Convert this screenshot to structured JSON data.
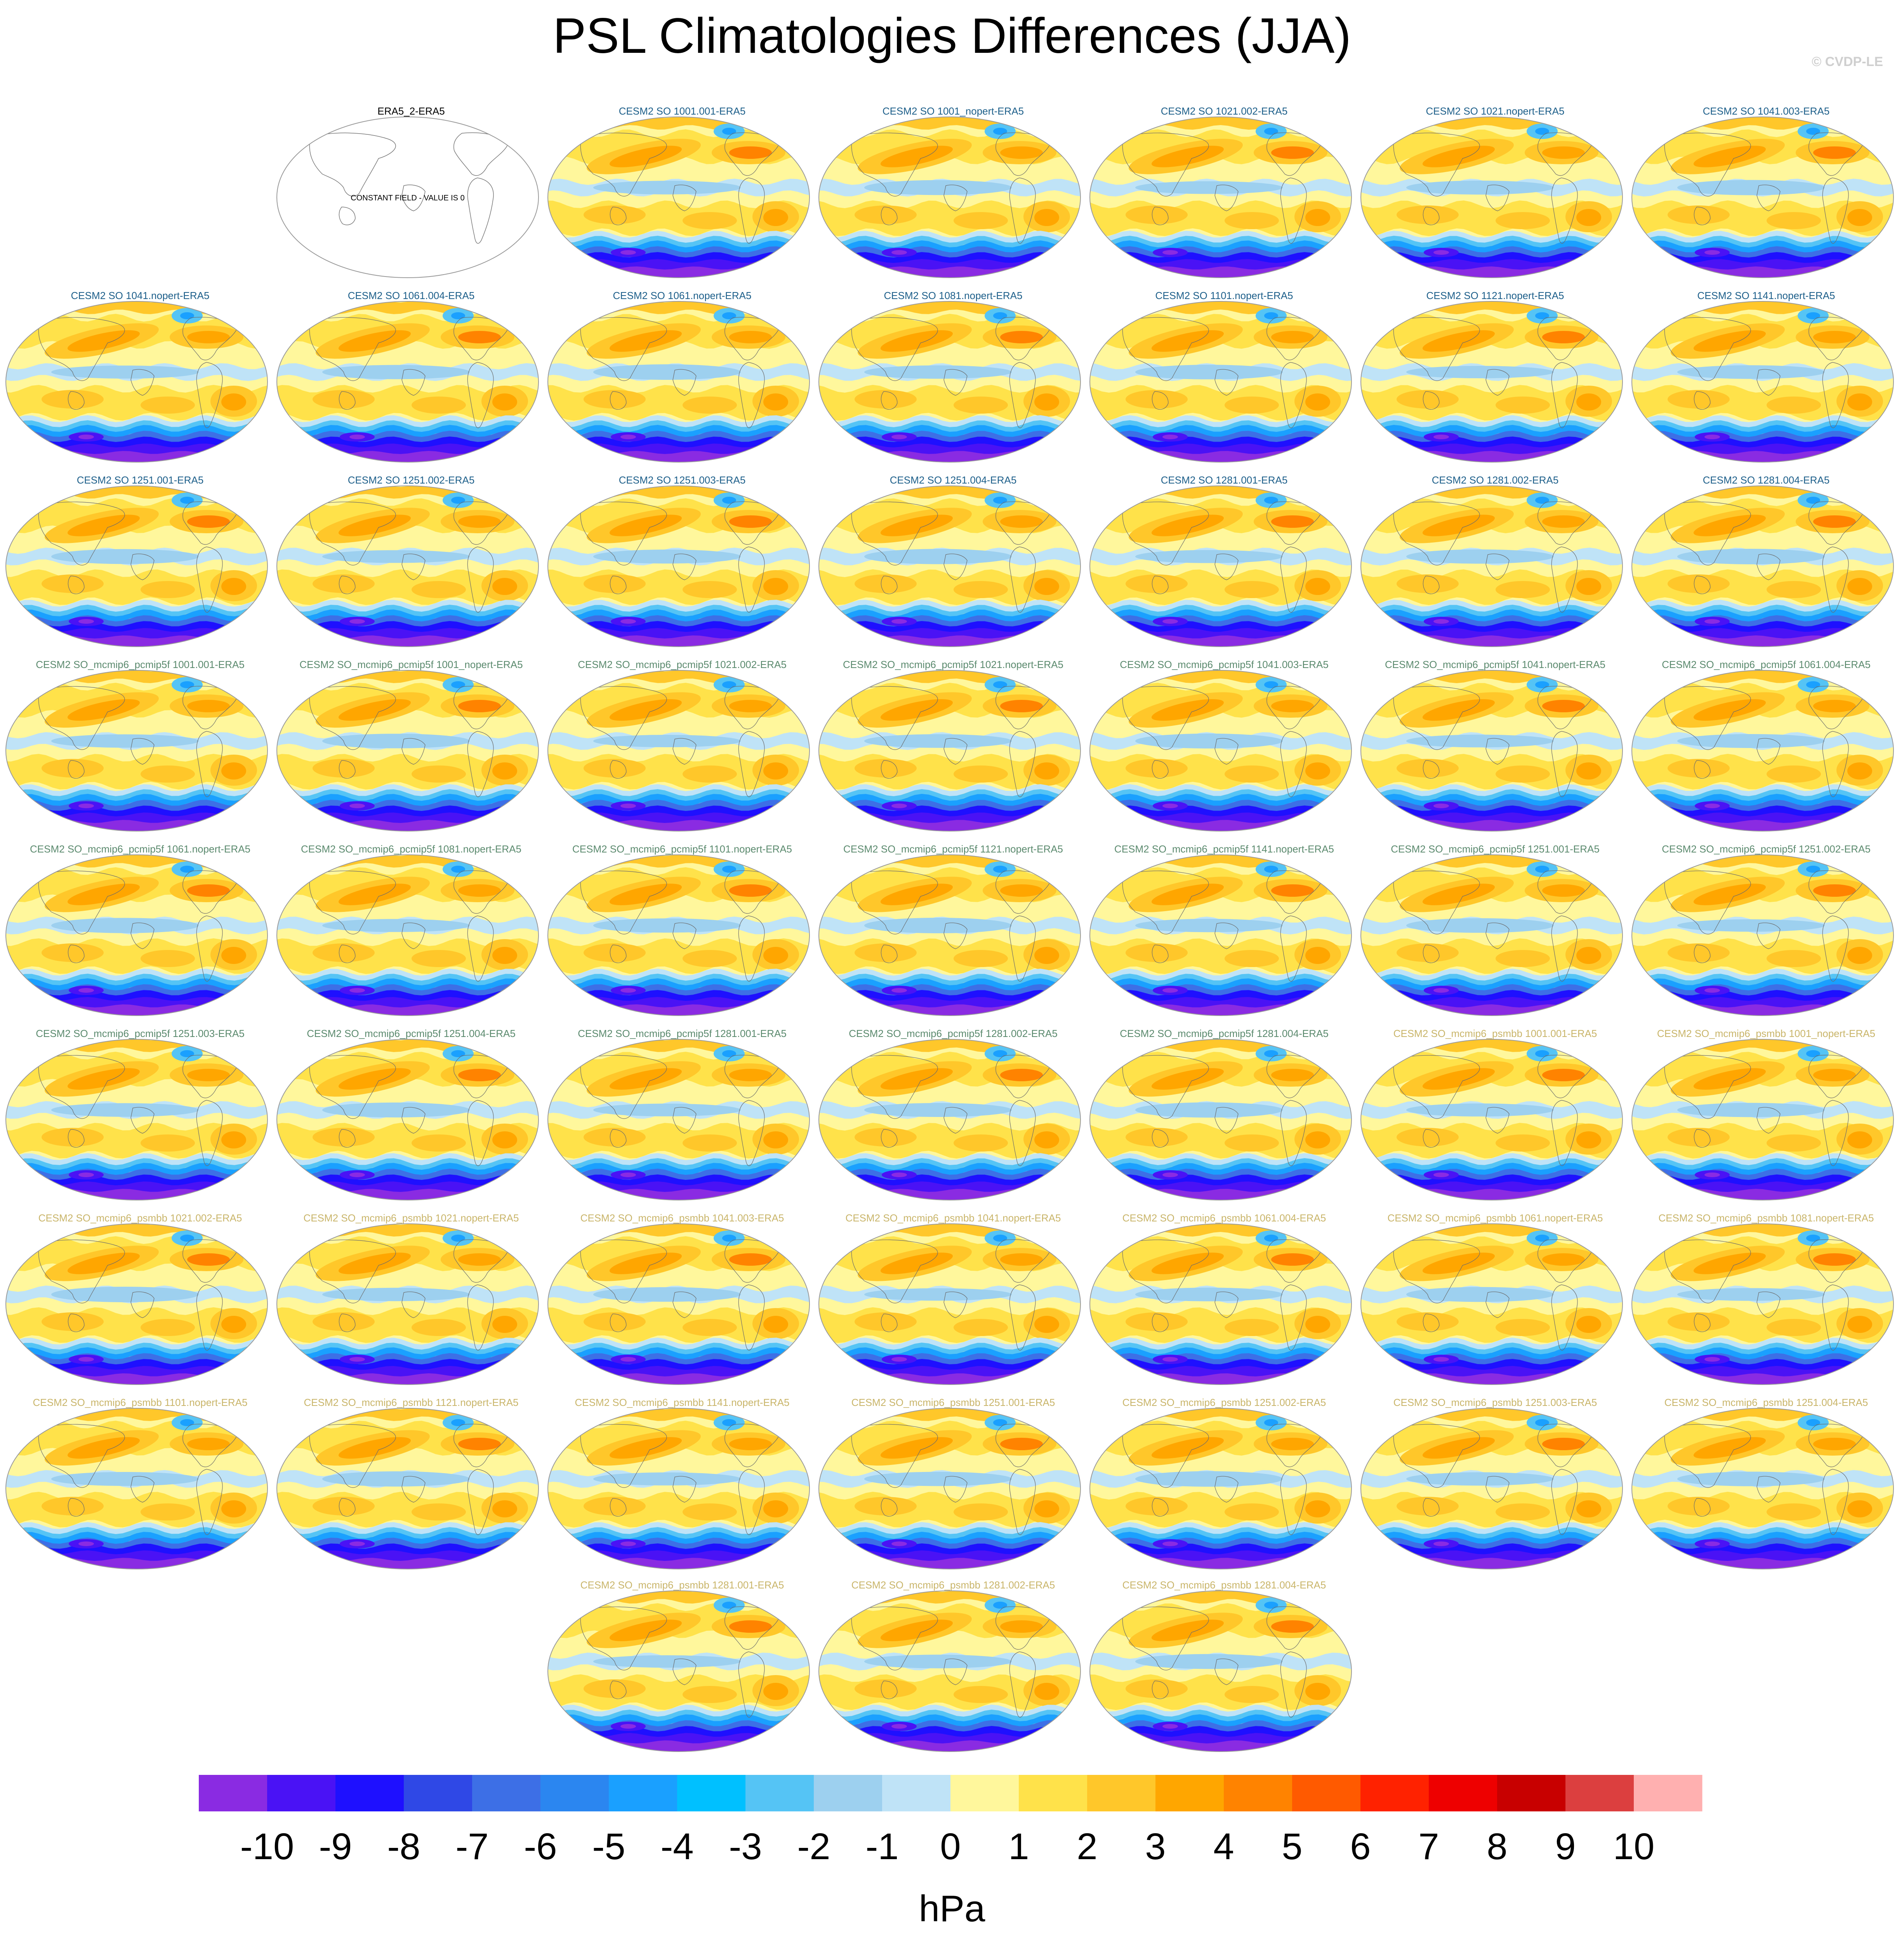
{
  "title": "PSL Climatologies Differences (JJA)",
  "watermark": "© CVDP-LE",
  "chart_data": {
    "type": "heatmap",
    "title": "PSL Climatologies Differences (JJA)",
    "units": "hPa",
    "projection": "Robinson (Pacific-centered global map)",
    "colorbar": {
      "orientation": "horizontal",
      "tick_labels": [
        "-10",
        "-9",
        "-8",
        "-7",
        "-6",
        "-5",
        "-4",
        "-3",
        "-2",
        "-1",
        "0",
        "1",
        "2",
        "3",
        "4",
        "5",
        "6",
        "7",
        "8",
        "9",
        "10"
      ],
      "colors": [
        "#8a2be2",
        "#4a12f5",
        "#1e10ff",
        "#2f48e6",
        "#3d6fe6",
        "#2b86f0",
        "#1aa0ff",
        "#00c0ff",
        "#55c4f5",
        "#9dd0ef",
        "#bfe3f7",
        "#fff79c",
        "#ffe24a",
        "#ffc72a",
        "#ffa600",
        "#ff8300",
        "#ff5a00",
        "#ff2200",
        "#ee0000",
        "#c80000",
        "#dc3f3f",
        "#ffb0b0"
      ]
    },
    "panels": [
      {
        "label": "ERA5_2-ERA5",
        "group": "reference",
        "note": "CONSTANT FIELD - VALUE IS 0"
      },
      {
        "label": "CESM2 SO 1001.001-ERA5",
        "group": "so"
      },
      {
        "label": "CESM2 SO 1001_nopert-ERA5",
        "group": "so"
      },
      {
        "label": "CESM2 SO 1021.002-ERA5",
        "group": "so"
      },
      {
        "label": "CESM2 SO 1021.nopert-ERA5",
        "group": "so"
      },
      {
        "label": "CESM2 SO 1041.003-ERA5",
        "group": "so"
      },
      {
        "label": "CESM2 SO 1041.nopert-ERA5",
        "group": "so"
      },
      {
        "label": "CESM2 SO 1061.004-ERA5",
        "group": "so"
      },
      {
        "label": "CESM2 SO 1061.nopert-ERA5",
        "group": "so"
      },
      {
        "label": "CESM2 SO 1081.nopert-ERA5",
        "group": "so"
      },
      {
        "label": "CESM2 SO 1101.nopert-ERA5",
        "group": "so"
      },
      {
        "label": "CESM2 SO 1121.nopert-ERA5",
        "group": "so"
      },
      {
        "label": "CESM2 SO 1141.nopert-ERA5",
        "group": "so"
      },
      {
        "label": "CESM2 SO 1251.001-ERA5",
        "group": "so"
      },
      {
        "label": "CESM2 SO 1251.002-ERA5",
        "group": "so"
      },
      {
        "label": "CESM2 SO 1251.003-ERA5",
        "group": "so"
      },
      {
        "label": "CESM2 SO 1251.004-ERA5",
        "group": "so"
      },
      {
        "label": "CESM2 SO 1281.001-ERA5",
        "group": "so"
      },
      {
        "label": "CESM2 SO 1281.002-ERA5",
        "group": "so"
      },
      {
        "label": "CESM2 SO 1281.004-ERA5",
        "group": "so"
      },
      {
        "label": "CESM2 SO_mcmip6_pcmip5f 1001.001-ERA5",
        "group": "pcmip5f"
      },
      {
        "label": "CESM2 SO_mcmip6_pcmip5f 1001_nopert-ERA5",
        "group": "pcmip5f"
      },
      {
        "label": "CESM2 SO_mcmip6_pcmip5f 1021.002-ERA5",
        "group": "pcmip5f"
      },
      {
        "label": "CESM2 SO_mcmip6_pcmip5f 1021.nopert-ERA5",
        "group": "pcmip5f"
      },
      {
        "label": "CESM2 SO_mcmip6_pcmip5f 1041.003-ERA5",
        "group": "pcmip5f"
      },
      {
        "label": "CESM2 SO_mcmip6_pcmip5f 1041.nopert-ERA5",
        "group": "pcmip5f"
      },
      {
        "label": "CESM2 SO_mcmip6_pcmip5f 1061.004-ERA5",
        "group": "pcmip5f"
      },
      {
        "label": "CESM2 SO_mcmip6_pcmip5f 1061.nopert-ERA5",
        "group": "pcmip5f"
      },
      {
        "label": "CESM2 SO_mcmip6_pcmip5f 1081.nopert-ERA5",
        "group": "pcmip5f"
      },
      {
        "label": "CESM2 SO_mcmip6_pcmip5f 1101.nopert-ERA5",
        "group": "pcmip5f"
      },
      {
        "label": "CESM2 SO_mcmip6_pcmip5f 1121.nopert-ERA5",
        "group": "pcmip5f"
      },
      {
        "label": "CESM2 SO_mcmip6_pcmip5f 1141.nopert-ERA5",
        "group": "pcmip5f"
      },
      {
        "label": "CESM2 SO_mcmip6_pcmip5f 1251.001-ERA5",
        "group": "pcmip5f"
      },
      {
        "label": "CESM2 SO_mcmip6_pcmip5f 1251.002-ERA5",
        "group": "pcmip5f"
      },
      {
        "label": "CESM2 SO_mcmip6_pcmip5f 1251.003-ERA5",
        "group": "pcmip5f"
      },
      {
        "label": "CESM2 SO_mcmip6_pcmip5f 1251.004-ERA5",
        "group": "pcmip5f"
      },
      {
        "label": "CESM2 SO_mcmip6_pcmip5f 1281.001-ERA5",
        "group": "pcmip5f"
      },
      {
        "label": "CESM2 SO_mcmip6_pcmip5f 1281.002-ERA5",
        "group": "pcmip5f"
      },
      {
        "label": "CESM2 SO_mcmip6_pcmip5f 1281.004-ERA5",
        "group": "pcmip5f"
      },
      {
        "label": "CESM2 SO_mcmip6_psmbb 1001.001-ERA5",
        "group": "psmbb"
      },
      {
        "label": "CESM2 SO_mcmip6_psmbb 1001_nopert-ERA5",
        "group": "psmbb"
      },
      {
        "label": "CESM2 SO_mcmip6_psmbb 1021.002-ERA5",
        "group": "psmbb"
      },
      {
        "label": "CESM2 SO_mcmip6_psmbb 1021.nopert-ERA5",
        "group": "psmbb"
      },
      {
        "label": "CESM2 SO_mcmip6_psmbb 1041.003-ERA5",
        "group": "psmbb"
      },
      {
        "label": "CESM2 SO_mcmip6_psmbb 1041.nopert-ERA5",
        "group": "psmbb"
      },
      {
        "label": "CESM2 SO_mcmip6_psmbb 1061.004-ERA5",
        "group": "psmbb"
      },
      {
        "label": "CESM2 SO_mcmip6_psmbb 1061.nopert-ERA5",
        "group": "psmbb"
      },
      {
        "label": "CESM2 SO_mcmip6_psmbb 1081.nopert-ERA5",
        "group": "psmbb"
      },
      {
        "label": "CESM2 SO_mcmip6_psmbb 1101.nopert-ERA5",
        "group": "psmbb"
      },
      {
        "label": "CESM2 SO_mcmip6_psmbb 1121.nopert-ERA5",
        "group": "psmbb"
      },
      {
        "label": "CESM2 SO_mcmip6_psmbb 1141.nopert-ERA5",
        "group": "psmbb"
      },
      {
        "label": "CESM2 SO_mcmip6_psmbb 1251.001-ERA5",
        "group": "psmbb"
      },
      {
        "label": "CESM2 SO_mcmip6_psmbb 1251.002-ERA5",
        "group": "psmbb"
      },
      {
        "label": "CESM2 SO_mcmip6_psmbb 1251.003-ERA5",
        "group": "psmbb"
      },
      {
        "label": "CESM2 SO_mcmip6_psmbb 1251.004-ERA5",
        "group": "psmbb"
      },
      {
        "label": "CESM2 SO_mcmip6_psmbb 1281.001-ERA5",
        "group": "psmbb"
      },
      {
        "label": "CESM2 SO_mcmip6_psmbb 1281.002-ERA5",
        "group": "psmbb"
      },
      {
        "label": "CESM2 SO_mcmip6_psmbb 1281.004-ERA5",
        "group": "psmbb"
      }
    ],
    "group_title_colors": {
      "reference": "#000000",
      "so": "#1d5f8a",
      "pcmip5f": "#5b8a6e",
      "psmbb": "#c9b56a"
    }
  }
}
